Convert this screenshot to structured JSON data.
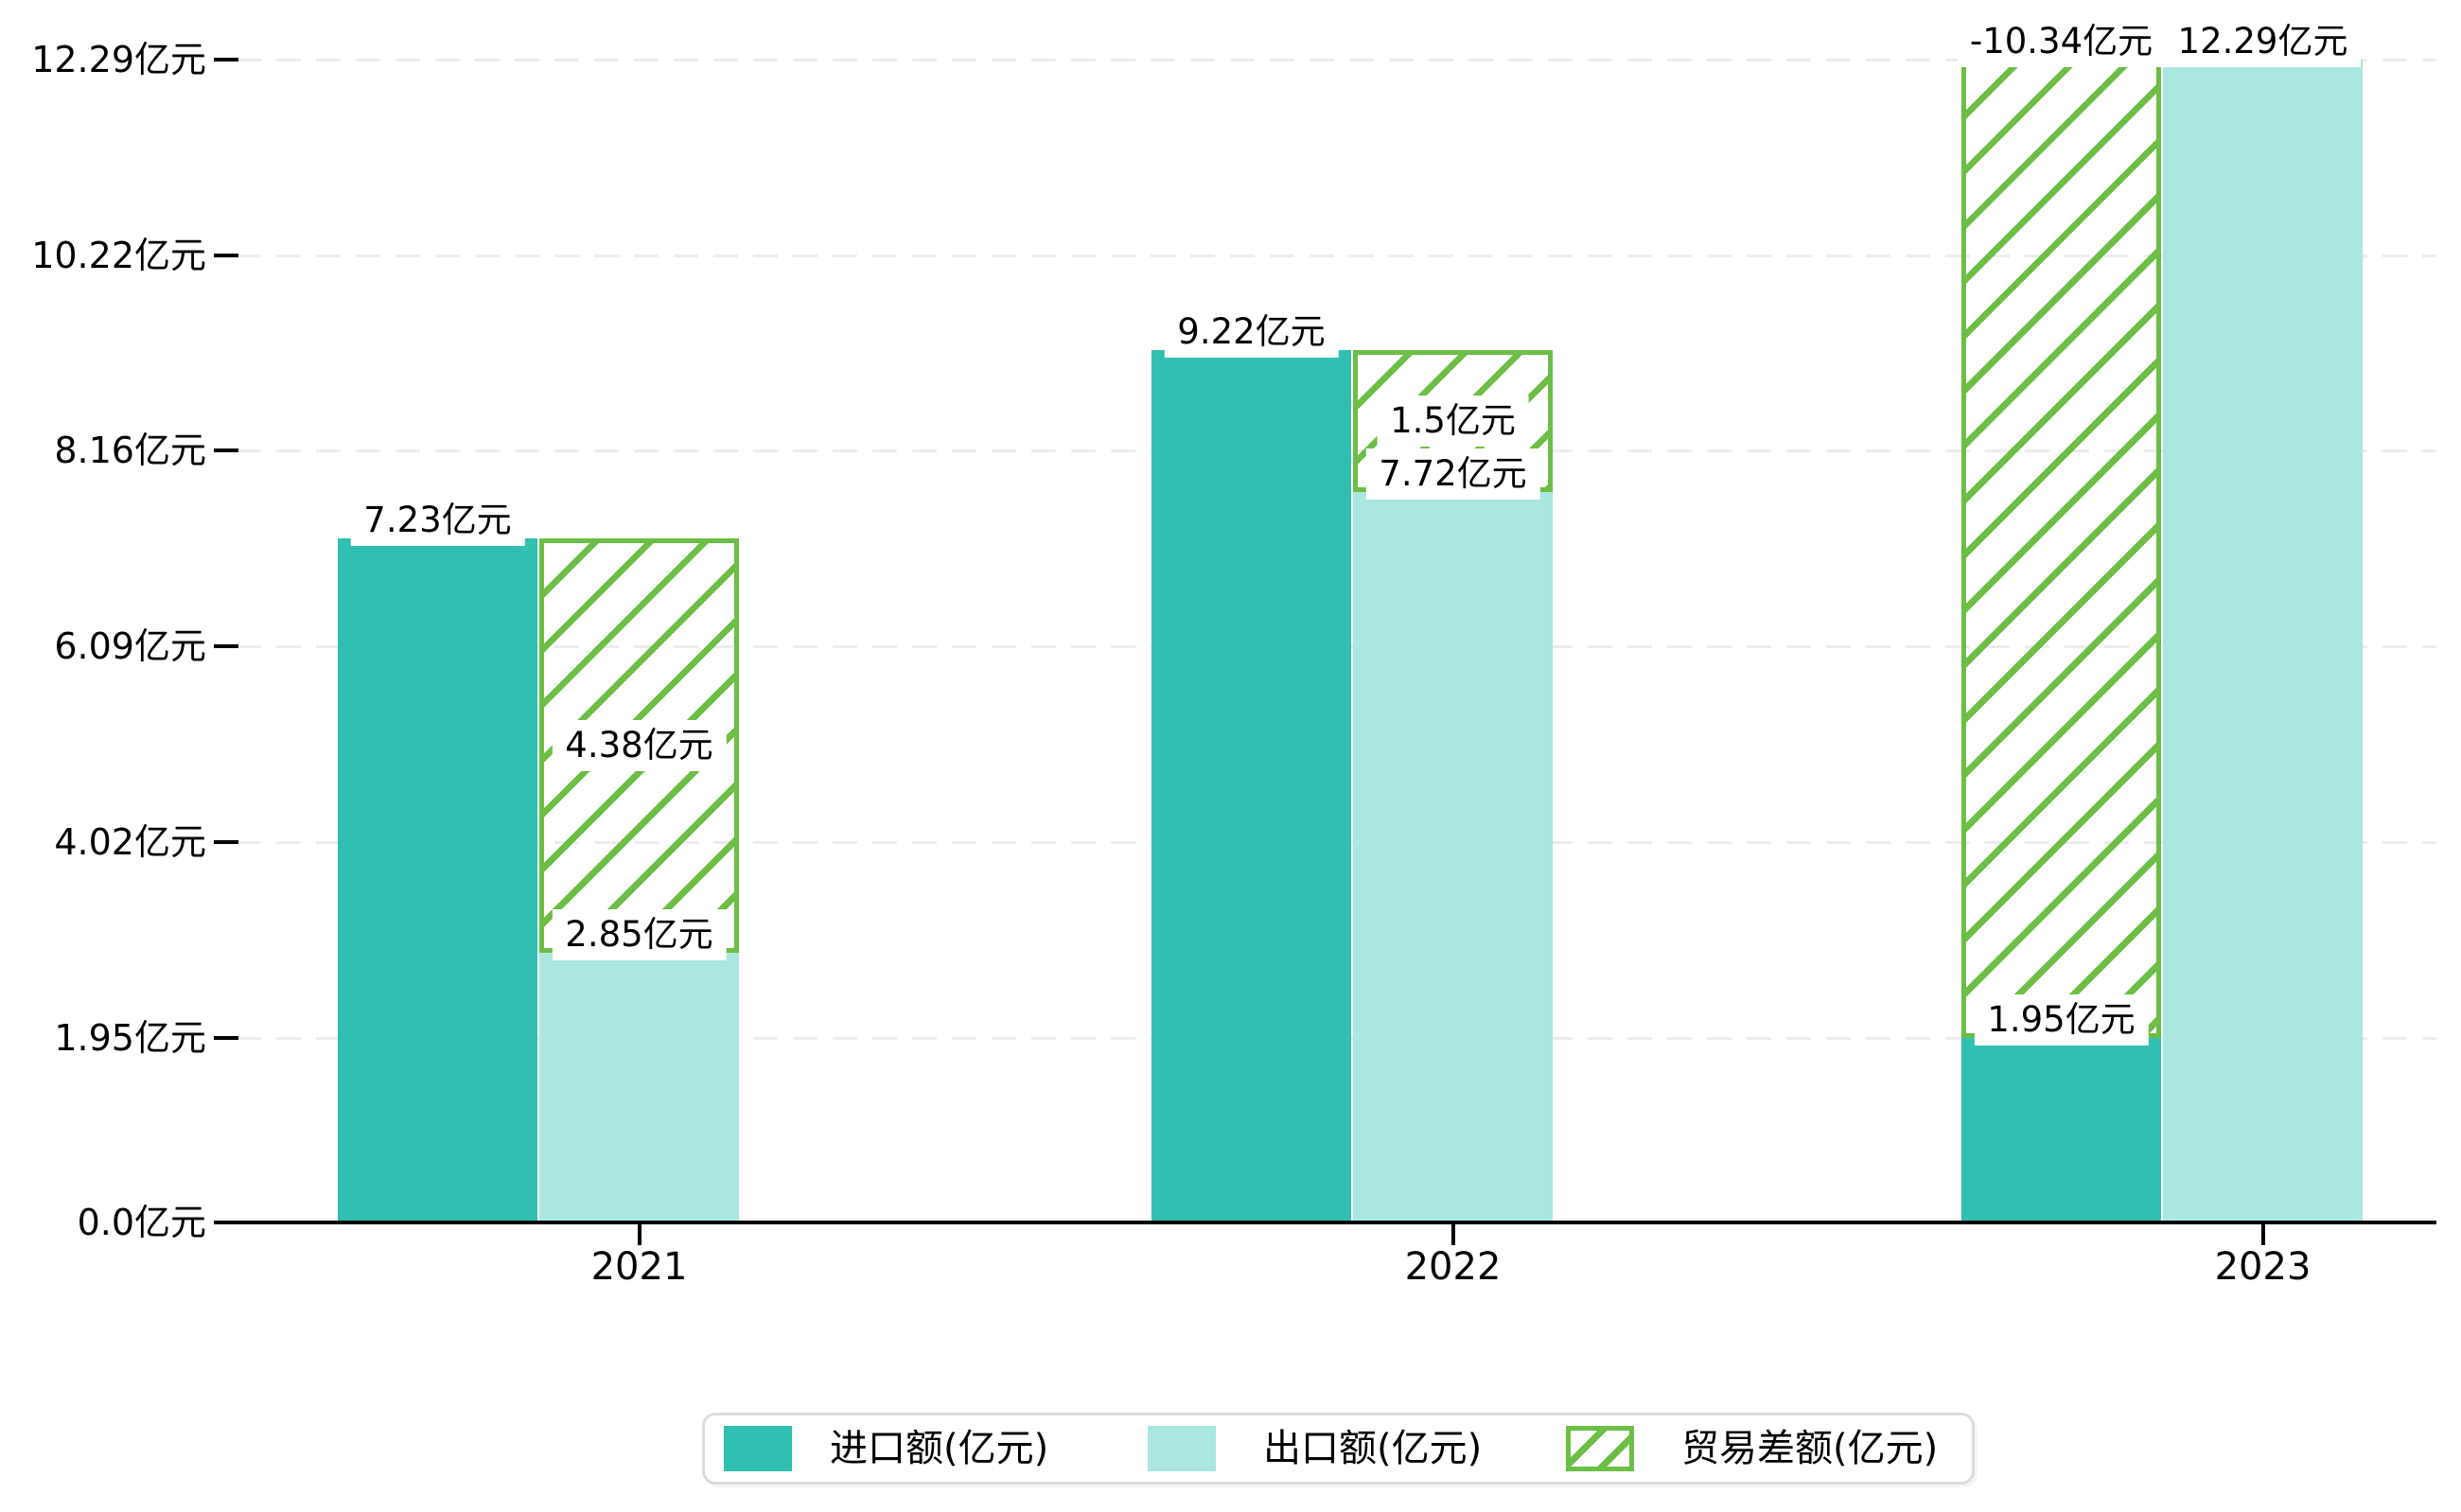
{
  "chart_data": {
    "type": "bar",
    "title": "",
    "unit": "亿元",
    "categories": [
      "2021",
      "2022",
      "2023"
    ],
    "series": [
      {
        "name": "进口额(亿元)",
        "role": "import",
        "style": "solid",
        "values": [
          7.23,
          9.22,
          1.95
        ],
        "data_labels": [
          "7.23亿元",
          "9.22亿元",
          "1.95亿元"
        ]
      },
      {
        "name": "出口额(亿元)",
        "role": "export",
        "style": "solid",
        "values": [
          2.85,
          7.72,
          12.29
        ],
        "data_labels": [
          "2.85亿元",
          "7.72亿元",
          "12.29亿元"
        ]
      },
      {
        "name": "贸易差额(亿元)",
        "role": "balance",
        "style": "hatched",
        "values": [
          4.38,
          1.5,
          -10.34
        ],
        "data_labels": [
          "4.38亿元",
          "1.5亿元",
          "-10.34亿元"
        ]
      }
    ],
    "y_axis": {
      "range": [
        0,
        12.29
      ],
      "ticks": [
        {
          "value": 0,
          "label": "0.0亿元"
        },
        {
          "value": 1.95,
          "label": "1.95亿元"
        },
        {
          "value": 4.02,
          "label": "4.02亿元"
        },
        {
          "value": 6.09,
          "label": "6.09亿元"
        },
        {
          "value": 8.16,
          "label": "8.16亿元"
        },
        {
          "value": 10.22,
          "label": "10.22亿元"
        },
        {
          "value": 12.29,
          "label": "12.29亿元"
        }
      ]
    },
    "x_axis": {
      "tick_labels": [
        "2021",
        "2022",
        "2023"
      ]
    },
    "legend": {
      "position": "bottom",
      "entries": [
        "进口额(亿元)",
        "出口额(亿元)",
        "贸易差额(亿元)"
      ]
    },
    "grid": "horizontal-dashed"
  },
  "colors": {
    "import_fill": "#30BFB0",
    "export_fill": "#A9E7DF",
    "balance_stroke": "#6CBE45",
    "gridline": "#ECECEC",
    "axis": "#000000",
    "label_text": "#000000",
    "label_bg": "#FFFFFF",
    "legend_border": "#DBDBDB",
    "background": "#FFFFFF"
  }
}
